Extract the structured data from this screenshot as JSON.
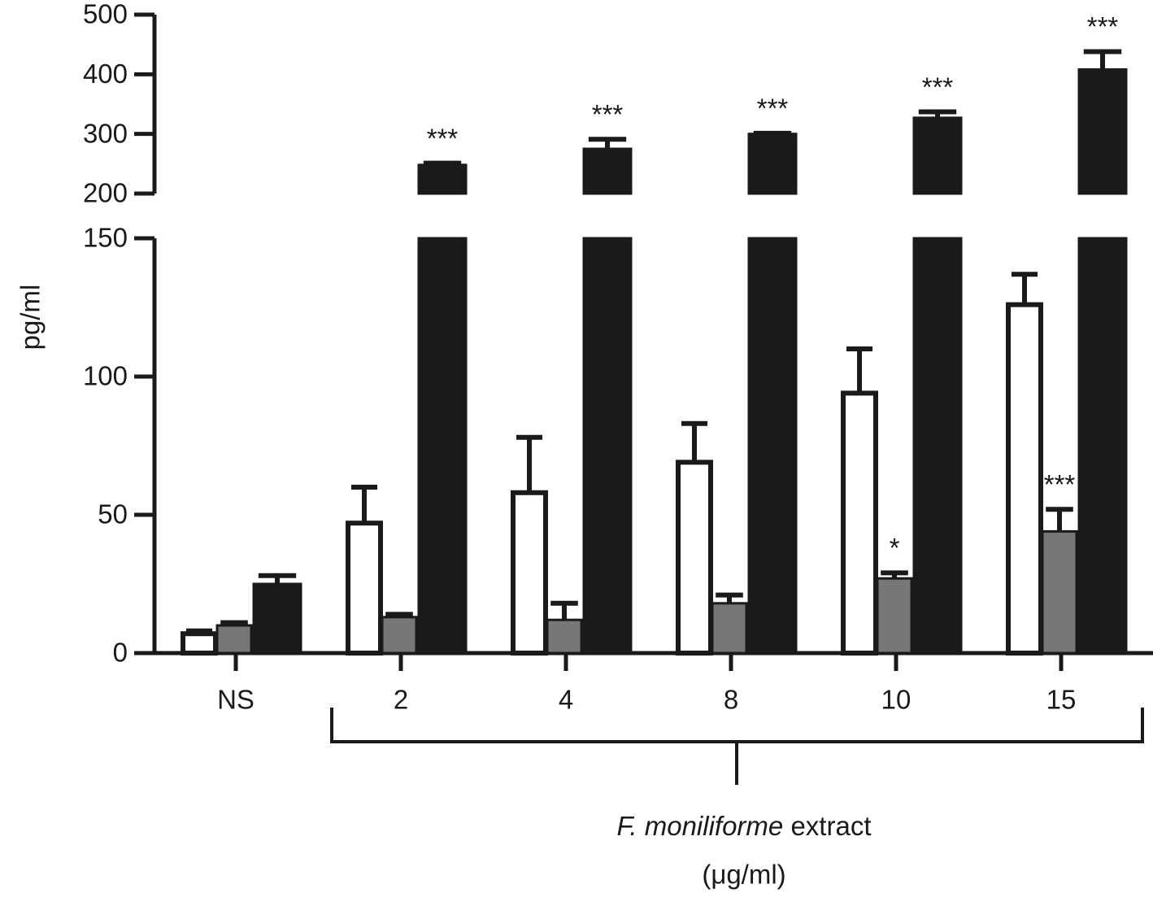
{
  "chart_data": {
    "type": "bar",
    "y_label": "pg/ml",
    "x_label": {
      "italic": "F. moniliforme",
      "text": "extract",
      "unit": "(μg/ml)"
    },
    "categories": [
      "NS",
      "2",
      "4",
      "8",
      "10",
      "15"
    ],
    "series": [
      {
        "color": "#ffffff",
        "values": [
          7,
          47,
          58,
          69,
          94,
          126
        ],
        "errors": [
          1,
          13,
          20,
          14,
          16,
          11
        ],
        "annotations": [
          null,
          null,
          null,
          null,
          null,
          null
        ]
      },
      {
        "color": "#777777",
        "values": [
          10,
          13,
          12,
          18,
          27,
          44
        ],
        "errors": [
          1,
          1,
          6,
          3,
          2,
          8
        ],
        "annotations": [
          null,
          null,
          null,
          null,
          "*",
          "***"
        ]
      },
      {
        "color": "#1a1a1a",
        "values": [
          25,
          248,
          275,
          300,
          327,
          408
        ],
        "errors": [
          3,
          3,
          16,
          1,
          10,
          30
        ],
        "annotations": [
          null,
          "***",
          "***",
          "***",
          "***",
          "***"
        ]
      }
    ],
    "ylim": [
      0,
      500
    ],
    "axis_break": [
      150,
      200
    ],
    "yticks": [
      0,
      50,
      100,
      150,
      200,
      300,
      400,
      500
    ]
  }
}
